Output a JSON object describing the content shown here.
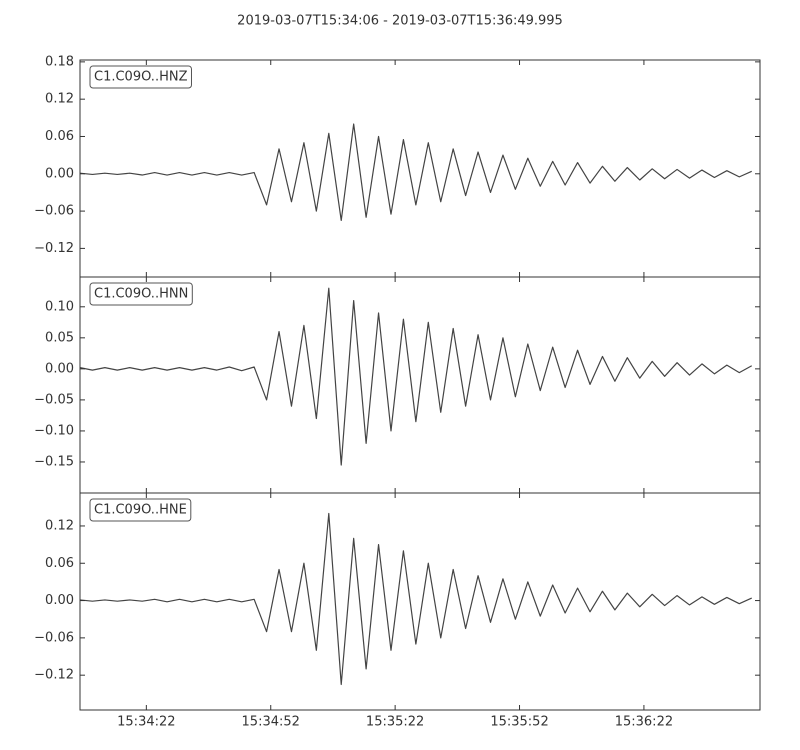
{
  "title": "2019-03-07T15:34:06  -  2019-03-07T15:36:49.995",
  "chart_data": [
    {
      "type": "line",
      "xlim": [
        "15:34:06",
        "15:36:49.995"
      ],
      "ylim": [
        -0.166,
        0.183
      ],
      "yticks": [
        0.18,
        0.12,
        0.06,
        {
          "value": 0,
          "label": "0.00"
        },
        {
          "value": -0.06,
          "label": "−0.06"
        },
        {
          "value": -0.12,
          "label": "−0.12"
        }
      ],
      "x": [
        "15:34:06",
        "15:34:09",
        "15:34:12",
        "15:34:15",
        "15:34:18",
        "15:34:21",
        "15:34:24",
        "15:34:27",
        "15:34:30",
        "15:34:33",
        "15:34:36",
        "15:34:39",
        "15:34:42",
        "15:34:45",
        "15:34:48",
        "15:34:51",
        "15:34:54",
        "15:34:57",
        "15:35:00",
        "15:35:03",
        "15:35:06",
        "15:35:09",
        "15:35:12",
        "15:35:15",
        "15:35:18",
        "15:35:21",
        "15:35:24",
        "15:35:27",
        "15:35:30",
        "15:35:33",
        "15:35:36",
        "15:35:39",
        "15:35:42",
        "15:35:45",
        "15:35:48",
        "15:35:51",
        "15:35:54",
        "15:35:57",
        "15:36:00",
        "15:36:03",
        "15:36:06",
        "15:36:09",
        "15:36:12",
        "15:36:15",
        "15:36:18",
        "15:36:21",
        "15:36:24",
        "15:36:27",
        "15:36:30",
        "15:36:33",
        "15:36:36",
        "15:36:39",
        "15:36:42",
        "15:36:45",
        "15:36:48"
      ],
      "series": [
        {
          "name": "C1.C09O..HNZ",
          "color": "#444444",
          "values": [
            0.001,
            -0.001,
            0.001,
            -0.001,
            0.001,
            -0.002,
            0.002,
            -0.002,
            0.002,
            -0.002,
            0.002,
            -0.002,
            0.002,
            -0.002,
            0.002,
            -0.05,
            0.04,
            -0.045,
            0.05,
            -0.06,
            0.065,
            -0.075,
            0.08,
            -0.07,
            0.06,
            -0.065,
            0.055,
            -0.05,
            0.05,
            -0.045,
            0.04,
            -0.035,
            0.035,
            -0.03,
            0.03,
            -0.025,
            0.025,
            -0.02,
            0.02,
            -0.018,
            0.018,
            -0.015,
            0.012,
            -0.012,
            0.01,
            -0.01,
            0.008,
            -0.008,
            0.007,
            -0.007,
            0.006,
            -0.006,
            0.005,
            -0.005,
            0.004
          ]
        }
      ]
    },
    {
      "type": "line",
      "xlim": [
        "15:34:06",
        "15:36:49.995"
      ],
      "ylim": [
        -0.2,
        0.148
      ],
      "yticks": [
        {
          "value": 0.1,
          "label": "0.10"
        },
        0.05,
        {
          "value": 0,
          "label": "0.00"
        },
        {
          "value": -0.05,
          "label": "−0.05"
        },
        {
          "value": -0.1,
          "label": "−0.10"
        },
        {
          "value": -0.15,
          "label": "−0.15"
        }
      ],
      "x": [
        "15:34:06",
        "15:34:09",
        "15:34:12",
        "15:34:15",
        "15:34:18",
        "15:34:21",
        "15:34:24",
        "15:34:27",
        "15:34:30",
        "15:34:33",
        "15:34:36",
        "15:34:39",
        "15:34:42",
        "15:34:45",
        "15:34:48",
        "15:34:51",
        "15:34:54",
        "15:34:57",
        "15:35:00",
        "15:35:03",
        "15:35:06",
        "15:35:09",
        "15:35:12",
        "15:35:15",
        "15:35:18",
        "15:35:21",
        "15:35:24",
        "15:35:27",
        "15:35:30",
        "15:35:33",
        "15:35:36",
        "15:35:39",
        "15:35:42",
        "15:35:45",
        "15:35:48",
        "15:35:51",
        "15:35:54",
        "15:35:57",
        "15:36:00",
        "15:36:03",
        "15:36:06",
        "15:36:09",
        "15:36:12",
        "15:36:15",
        "15:36:18",
        "15:36:21",
        "15:36:24",
        "15:36:27",
        "15:36:30",
        "15:36:33",
        "15:36:36",
        "15:36:39",
        "15:36:42",
        "15:36:45",
        "15:36:48"
      ],
      "series": [
        {
          "name": "C1.C09O..HNN",
          "color": "#444444",
          "values": [
            0.002,
            -0.002,
            0.002,
            -0.002,
            0.002,
            -0.002,
            0.002,
            -0.002,
            0.002,
            -0.002,
            0.002,
            -0.002,
            0.003,
            -0.003,
            0.003,
            -0.05,
            0.06,
            -0.06,
            0.07,
            -0.08,
            0.13,
            -0.155,
            0.11,
            -0.12,
            0.09,
            -0.1,
            0.08,
            -0.085,
            0.075,
            -0.07,
            0.065,
            -0.06,
            0.055,
            -0.05,
            0.05,
            -0.045,
            0.04,
            -0.035,
            0.035,
            -0.03,
            0.03,
            -0.025,
            0.02,
            -0.02,
            0.018,
            -0.015,
            0.012,
            -0.012,
            0.01,
            -0.01,
            0.008,
            -0.008,
            0.006,
            -0.006,
            0.005
          ]
        }
      ]
    },
    {
      "type": "line",
      "xlim": [
        "15:34:06",
        "15:36:49.995"
      ],
      "ylim": [
        -0.176,
        0.173
      ],
      "yticks": [
        0.12,
        0.06,
        {
          "value": 0,
          "label": "0.00"
        },
        {
          "value": -0.06,
          "label": "−0.06"
        },
        {
          "value": -0.12,
          "label": "−0.12"
        }
      ],
      "xticks": [
        "15:34:22",
        "15:34:52",
        "15:35:22",
        "15:35:52",
        "15:36:22"
      ],
      "x": [
        "15:34:06",
        "15:34:09",
        "15:34:12",
        "15:34:15",
        "15:34:18",
        "15:34:21",
        "15:34:24",
        "15:34:27",
        "15:34:30",
        "15:34:33",
        "15:34:36",
        "15:34:39",
        "15:34:42",
        "15:34:45",
        "15:34:48",
        "15:34:51",
        "15:34:54",
        "15:34:57",
        "15:35:00",
        "15:35:03",
        "15:35:06",
        "15:35:09",
        "15:35:12",
        "15:35:15",
        "15:35:18",
        "15:35:21",
        "15:35:24",
        "15:35:27",
        "15:35:30",
        "15:35:33",
        "15:35:36",
        "15:35:39",
        "15:35:42",
        "15:35:45",
        "15:35:48",
        "15:35:51",
        "15:35:54",
        "15:35:57",
        "15:36:00",
        "15:36:03",
        "15:36:06",
        "15:36:09",
        "15:36:12",
        "15:36:15",
        "15:36:18",
        "15:36:21",
        "15:36:24",
        "15:36:27",
        "15:36:30",
        "15:36:33",
        "15:36:36",
        "15:36:39",
        "15:36:42",
        "15:36:45",
        "15:36:48"
      ],
      "series": [
        {
          "name": "C1.C09O..HNE",
          "color": "#444444",
          "values": [
            0.001,
            -0.001,
            0.001,
            -0.001,
            0.001,
            -0.001,
            0.002,
            -0.002,
            0.002,
            -0.002,
            0.002,
            -0.002,
            0.002,
            -0.002,
            0.002,
            -0.05,
            0.05,
            -0.05,
            0.06,
            -0.08,
            0.14,
            -0.135,
            0.1,
            -0.11,
            0.09,
            -0.08,
            0.08,
            -0.07,
            0.06,
            -0.06,
            0.05,
            -0.045,
            0.04,
            -0.035,
            0.035,
            -0.03,
            0.03,
            -0.025,
            0.025,
            -0.02,
            0.02,
            -0.018,
            0.015,
            -0.015,
            0.012,
            -0.01,
            0.01,
            -0.008,
            0.008,
            -0.007,
            0.006,
            -0.006,
            0.005,
            -0.005,
            0.004
          ]
        }
      ]
    }
  ]
}
